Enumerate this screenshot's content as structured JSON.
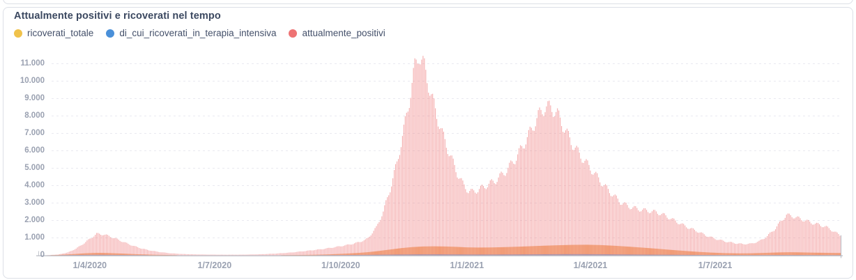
{
  "header": {
    "title": "Attualmente positivi e ricoverati nel tempo"
  },
  "legend": {
    "items": [
      {
        "label": "ricoverati_totale",
        "color": "#f0c24b"
      },
      {
        "label": "di_cui_ricoverati_in_terapia_intensiva",
        "color": "#4a90d9"
      },
      {
        "label": "attualmente_positivi",
        "color": "#ee7374"
      }
    ]
  },
  "colors": {
    "title_text": "#3b4860",
    "axis_text": "#9aa1b1",
    "gridline": "#e9e9f0",
    "axis_line": "#c3c6cd",
    "bar_positivi": "#ee7374",
    "bar_ricoverati_band": "#f2a96b",
    "bar_terapia": "#6a9bd8",
    "card_border": "#dcdfe6"
  },
  "chart_data": {
    "type": "bar",
    "title": "Attualmente positivi e ricoverati nel tempo",
    "xlabel": "",
    "ylabel": "",
    "grid": "horizontal-dashed",
    "legend_position": "top-left",
    "ylim": [
      0,
      11600
    ],
    "y_tick_step": 1000,
    "y_tick_labels": [
      "0",
      "1.000",
      "2.000",
      "3.000",
      "4.000",
      "5.000",
      "6.000",
      "7.000",
      "8.000",
      "9.000",
      "10.000",
      "11.000"
    ],
    "x_ticks": [
      {
        "label": "1/4/2020",
        "day": 37
      },
      {
        "label": "1/7/2020",
        "day": 128
      },
      {
        "label": "1/10/2020",
        "day": 220
      },
      {
        "label": "1/1/2021",
        "day": 312
      },
      {
        "label": "1/4/2021",
        "day": 402
      },
      {
        "label": "1/7/2021",
        "day": 493
      }
    ],
    "days_total": 584,
    "series": [
      {
        "name": "attualmente_positivi",
        "legend_color": "#ee7374",
        "points": [
          [
            0,
            0
          ],
          [
            7,
            12
          ],
          [
            14,
            45
          ],
          [
            21,
            160
          ],
          [
            27,
            380
          ],
          [
            33,
            700
          ],
          [
            38,
            1000
          ],
          [
            42,
            1230
          ],
          [
            47,
            1200
          ],
          [
            53,
            1050
          ],
          [
            59,
            850
          ],
          [
            66,
            620
          ],
          [
            73,
            430
          ],
          [
            80,
            290
          ],
          [
            88,
            185
          ],
          [
            96,
            115
          ],
          [
            104,
            75
          ],
          [
            113,
            52
          ],
          [
            124,
            40
          ],
          [
            136,
            33
          ],
          [
            148,
            36
          ],
          [
            160,
            55
          ],
          [
            172,
            95
          ],
          [
            184,
            160
          ],
          [
            196,
            260
          ],
          [
            207,
            360
          ],
          [
            216,
            470
          ],
          [
            224,
            580
          ],
          [
            231,
            700
          ],
          [
            238,
            880
          ],
          [
            240,
            1000
          ],
          [
            246,
            1600
          ],
          [
            251,
            2500
          ],
          [
            256,
            3800
          ],
          [
            261,
            5300
          ],
          [
            266,
            7200
          ],
          [
            270,
            8900
          ],
          [
            274,
            10800
          ],
          [
            277,
            11560
          ],
          [
            281,
            10800
          ],
          [
            285,
            9500
          ],
          [
            289,
            8300
          ],
          [
            294,
            7000
          ],
          [
            299,
            5900
          ],
          [
            305,
            4700
          ],
          [
            309,
            4100
          ],
          [
            313,
            3700
          ],
          [
            316,
            3640
          ],
          [
            320,
            3750
          ],
          [
            326,
            4000
          ],
          [
            333,
            4300
          ],
          [
            340,
            4800
          ],
          [
            347,
            5500
          ],
          [
            353,
            6300
          ],
          [
            359,
            7200
          ],
          [
            364,
            8000
          ],
          [
            369,
            8520
          ],
          [
            374,
            8450
          ],
          [
            378,
            8100
          ],
          [
            383,
            7300
          ],
          [
            388,
            6500
          ],
          [
            394,
            5800
          ],
          [
            400,
            5200
          ],
          [
            406,
            4600
          ],
          [
            412,
            4000
          ],
          [
            418,
            3500
          ],
          [
            424,
            3050
          ],
          [
            430,
            2800
          ],
          [
            437,
            2650
          ],
          [
            444,
            2550
          ],
          [
            450,
            2480
          ],
          [
            456,
            2300
          ],
          [
            462,
            2050
          ],
          [
            468,
            1800
          ],
          [
            474,
            1570
          ],
          [
            480,
            1380
          ],
          [
            486,
            1150
          ],
          [
            493,
            950
          ],
          [
            500,
            800
          ],
          [
            507,
            700
          ],
          [
            513,
            645
          ],
          [
            519,
            660
          ],
          [
            525,
            800
          ],
          [
            531,
            1100
          ],
          [
            537,
            1550
          ],
          [
            541,
            1950
          ],
          [
            545,
            2320
          ],
          [
            549,
            2250
          ],
          [
            554,
            2120
          ],
          [
            559,
            1990
          ],
          [
            564,
            1850
          ],
          [
            569,
            1750
          ],
          [
            574,
            1620
          ],
          [
            579,
            1400
          ],
          [
            584,
            1150
          ]
        ]
      },
      {
        "name": "ricoverati_totale",
        "legend_color": "#f0c24b",
        "points": [
          [
            0,
            0
          ],
          [
            14,
            20
          ],
          [
            25,
            70
          ],
          [
            35,
            120
          ],
          [
            42,
            140
          ],
          [
            50,
            130
          ],
          [
            60,
            100
          ],
          [
            72,
            60
          ],
          [
            85,
            30
          ],
          [
            100,
            12
          ],
          [
            120,
            5
          ],
          [
            145,
            4
          ],
          [
            165,
            8
          ],
          [
            185,
            15
          ],
          [
            200,
            30
          ],
          [
            212,
            55
          ],
          [
            222,
            90
          ],
          [
            232,
            130
          ],
          [
            240,
            180
          ],
          [
            248,
            250
          ],
          [
            256,
            330
          ],
          [
            264,
            410
          ],
          [
            272,
            470
          ],
          [
            280,
            505
          ],
          [
            288,
            515
          ],
          [
            296,
            505
          ],
          [
            304,
            485
          ],
          [
            312,
            455
          ],
          [
            320,
            445
          ],
          [
            330,
            450
          ],
          [
            340,
            470
          ],
          [
            350,
            495
          ],
          [
            360,
            525
          ],
          [
            370,
            555
          ],
          [
            380,
            580
          ],
          [
            390,
            600
          ],
          [
            400,
            605
          ],
          [
            410,
            585
          ],
          [
            420,
            545
          ],
          [
            430,
            495
          ],
          [
            440,
            440
          ],
          [
            450,
            380
          ],
          [
            460,
            315
          ],
          [
            470,
            255
          ],
          [
            480,
            200
          ],
          [
            490,
            155
          ],
          [
            500,
            125
          ],
          [
            510,
            110
          ],
          [
            520,
            115
          ],
          [
            530,
            140
          ],
          [
            540,
            165
          ],
          [
            548,
            175
          ],
          [
            556,
            165
          ],
          [
            565,
            150
          ],
          [
            575,
            140
          ],
          [
            584,
            130
          ]
        ]
      },
      {
        "name": "di_cui_ricoverati_in_terapia_intensiva",
        "legend_color": "#4a90d9",
        "points": [
          [
            0,
            0
          ],
          [
            15,
            8
          ],
          [
            25,
            18
          ],
          [
            35,
            26
          ],
          [
            45,
            28
          ],
          [
            55,
            22
          ],
          [
            68,
            14
          ],
          [
            82,
            7
          ],
          [
            100,
            3
          ],
          [
            130,
            1
          ],
          [
            160,
            2
          ],
          [
            190,
            5
          ],
          [
            210,
            10
          ],
          [
            225,
            18
          ],
          [
            240,
            28
          ],
          [
            252,
            38
          ],
          [
            264,
            48
          ],
          [
            276,
            55
          ],
          [
            288,
            57
          ],
          [
            300,
            53
          ],
          [
            312,
            48
          ],
          [
            324,
            46
          ],
          [
            336,
            48
          ],
          [
            350,
            52
          ],
          [
            362,
            58
          ],
          [
            374,
            63
          ],
          [
            386,
            66
          ],
          [
            398,
            65
          ],
          [
            410,
            60
          ],
          [
            422,
            53
          ],
          [
            434,
            46
          ],
          [
            446,
            40
          ],
          [
            458,
            34
          ],
          [
            470,
            27
          ],
          [
            482,
            21
          ],
          [
            494,
            15
          ],
          [
            506,
            11
          ],
          [
            518,
            10
          ],
          [
            530,
            13
          ],
          [
            542,
            17
          ],
          [
            554,
            16
          ],
          [
            566,
            13
          ],
          [
            575,
            11
          ],
          [
            584,
            9
          ]
        ]
      }
    ]
  }
}
